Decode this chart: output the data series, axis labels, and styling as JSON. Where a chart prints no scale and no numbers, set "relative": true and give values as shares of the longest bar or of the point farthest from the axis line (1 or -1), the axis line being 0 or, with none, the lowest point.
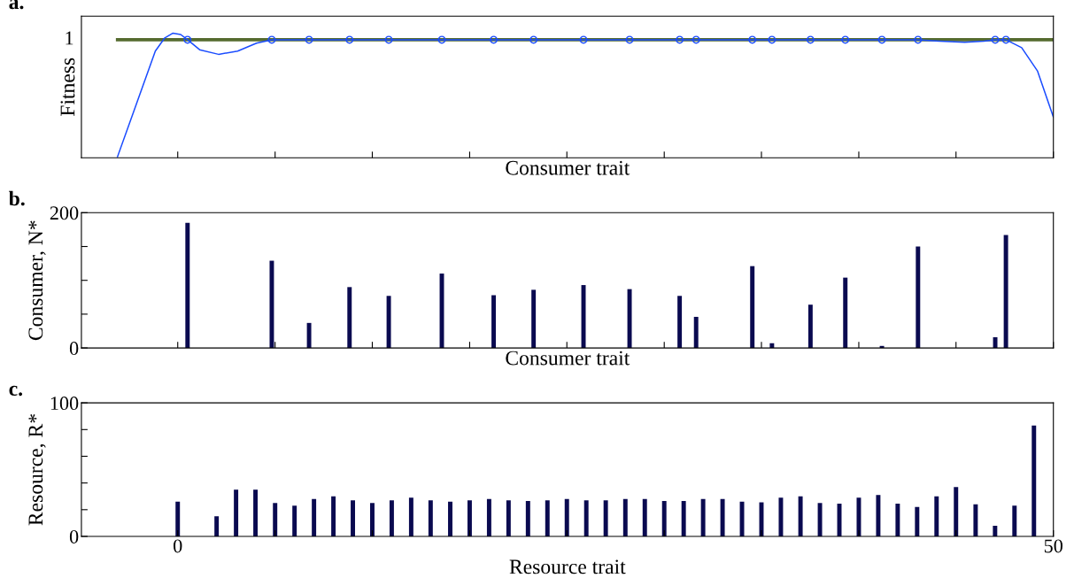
{
  "chart_data": [
    {
      "type": "line",
      "ylabel": "Fitness",
      "xlabel": "Consumer trait",
      "annotations": [
        "a.",
        "1"
      ],
      "relative": true,
      "tick_labels": false,
      "xlim": [
        -5.5,
        50
      ],
      "xticks": [
        {
          "value": 0,
          "label": null
        },
        {
          "value": 5.56,
          "label": null
        },
        {
          "value": 11.11,
          "label": null
        },
        {
          "value": 16.67,
          "label": null
        },
        {
          "value": 22.22,
          "label": null
        },
        {
          "value": 27.78,
          "label": null
        },
        {
          "value": 33.33,
          "label": null
        },
        {
          "value": 38.89,
          "label": null
        },
        {
          "value": 44.44,
          "label": null
        },
        {
          "value": 50,
          "label": null
        }
      ],
      "series": [
        {
          "type": "line",
          "color": "#556b2f",
          "x": [
            -3.44,
            50
          ],
          "values": [
            0.947,
            0.947
          ]
        },
        {
          "type": "line",
          "color": "#1a4cff",
          "x": [
            -3.44,
            -2.36,
            -1.28,
            -0.74,
            -0.27,
            0.17,
            0.56,
            1.25,
            2.33,
            3.42,
            4.5,
            5.37,
            7.5,
            20,
            30,
            40,
            42.27,
            43.5,
            44.94,
            46.03,
            46.68,
            47.29,
            48.19,
            49.09,
            50
          ],
          "values": [
            0.008,
            0.432,
            0.856,
            0.962,
            1,
            0.989,
            0.947,
            0.867,
            0.83,
            0.856,
            0.92,
            0.947,
            0.947,
            0.947,
            0.947,
            0.947,
            0.947,
            0.936,
            0.926,
            0.936,
            0.947,
            0.947,
            0.883,
            0.697,
            0.326
          ]
        },
        {
          "type": "scatter",
          "color": "#1a4cff",
          "marker": "circle",
          "x": [
            0.56,
            5.37,
            7.5,
            9.81,
            12.05,
            15.08,
            18.04,
            20.32,
            23.17,
            25.8,
            28.66,
            29.6,
            32.81,
            33.93,
            36.13,
            38.12,
            40.21,
            42.27,
            46.68,
            47.29
          ],
          "values": [
            0.947,
            0.947,
            0.947,
            0.947,
            0.947,
            0.947,
            0.947,
            0.947,
            0.947,
            0.947,
            0.947,
            0.947,
            0.947,
            0.947,
            0.947,
            0.947,
            0.947,
            0.947,
            0.947,
            0.947
          ]
        }
      ]
    },
    {
      "type": "bar",
      "ylabel": "Consumer, N*",
      "xlabel": "Consumer trait",
      "annotations": [
        "b."
      ],
      "tick_labels": "y",
      "xlim": [
        -5.5,
        50
      ],
      "xticks": [
        {
          "value": 0,
          "label": null
        },
        {
          "value": 5.56,
          "label": null
        },
        {
          "value": 11.11,
          "label": null
        },
        {
          "value": 16.67,
          "label": null
        },
        {
          "value": 22.22,
          "label": null
        },
        {
          "value": 27.78,
          "label": null
        },
        {
          "value": 33.33,
          "label": null
        },
        {
          "value": 38.89,
          "label": null
        },
        {
          "value": 44.44,
          "label": null
        },
        {
          "value": 50,
          "label": null
        }
      ],
      "ylim": [
        0,
        200
      ],
      "yticks": [
        0,
        {
          "value": 50,
          "label": null
        },
        {
          "value": 100,
          "label": null
        },
        {
          "value": 150,
          "label": null
        },
        200
      ],
      "color": "#0a0a50",
      "x": [
        0.56,
        5.37,
        7.5,
        9.81,
        12.05,
        15.08,
        18.04,
        20.32,
        23.17,
        25.8,
        28.66,
        29.6,
        32.81,
        33.93,
        36.13,
        38.12,
        40.21,
        42.27,
        46.68,
        47.29
      ],
      "values": [
        185,
        129,
        37,
        90,
        77,
        110,
        78,
        86,
        93,
        87,
        77,
        46,
        121,
        7,
        64,
        104,
        3,
        150,
        16,
        167
      ]
    },
    {
      "type": "bar",
      "ylabel": "Resource, R*",
      "xlabel": "Resource trait",
      "annotations": [
        "c."
      ],
      "xlim": [
        -5.5,
        50
      ],
      "xticks": [
        0,
        {
          "value": 5.56,
          "label": null
        },
        {
          "value": 11.11,
          "label": null
        },
        {
          "value": 16.67,
          "label": null
        },
        {
          "value": 22.22,
          "label": null
        },
        {
          "value": 27.78,
          "label": null
        },
        {
          "value": 33.33,
          "label": null
        },
        {
          "value": 38.89,
          "label": null
        },
        {
          "value": 44.44,
          "label": null
        },
        50
      ],
      "ylim": [
        0,
        100
      ],
      "yticks": [
        0,
        {
          "value": 20,
          "label": null
        },
        {
          "value": 40,
          "label": null
        },
        {
          "value": 60,
          "label": null
        },
        {
          "value": 80,
          "label": null
        },
        100
      ],
      "color": "#0a0a50",
      "x": [
        0,
        1.11,
        2.22,
        3.33,
        4.44,
        5.56,
        6.67,
        7.78,
        8.89,
        10,
        11.11,
        12.22,
        13.33,
        14.44,
        15.56,
        16.67,
        17.78,
        18.89,
        20,
        21.11,
        22.22,
        23.33,
        24.44,
        25.56,
        26.67,
        27.78,
        28.89,
        30,
        31.11,
        32.22,
        33.33,
        34.44,
        35.56,
        36.67,
        37.78,
        38.89,
        40,
        41.11,
        42.22,
        43.33,
        44.44,
        45.56,
        46.67,
        47.78,
        48.89
      ],
      "values": [
        26,
        0,
        15,
        35,
        35,
        25,
        23,
        28,
        30,
        27,
        25,
        27,
        29,
        27,
        26,
        27,
        28,
        27,
        26.5,
        27,
        28,
        27,
        27,
        28,
        28,
        26.5,
        26.5,
        28,
        28,
        26,
        25.5,
        29,
        30,
        25,
        24.5,
        29,
        31,
        24.5,
        22,
        30,
        37,
        24,
        8,
        23,
        83
      ]
    }
  ]
}
